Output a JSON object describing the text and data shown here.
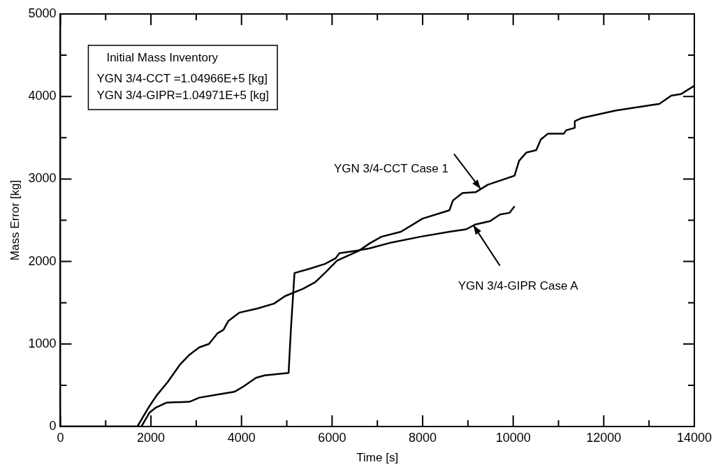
{
  "chart_data": {
    "type": "line",
    "xlabel": "Time [s]",
    "ylabel": "Mass Error [kg]",
    "xlim": [
      0,
      14000
    ],
    "ylim": [
      0,
      5000
    ],
    "xticks": [
      0,
      {
        "value": 1000,
        "label": null
      },
      2000,
      {
        "value": 3000,
        "label": null
      },
      4000,
      {
        "value": 5000,
        "label": null
      },
      6000,
      {
        "value": 7000,
        "label": null
      },
      8000,
      {
        "value": 9000,
        "label": null
      },
      10000,
      {
        "value": 11000,
        "label": null
      },
      12000,
      {
        "value": 13000,
        "label": null
      },
      14000
    ],
    "yticks": [
      0,
      {
        "value": 500,
        "label": null
      },
      1000,
      {
        "value": 1500,
        "label": null
      },
      2000,
      {
        "value": 2500,
        "label": null
      },
      3000,
      {
        "value": 3500,
        "label": null
      },
      4000,
      {
        "value": 4500,
        "label": null
      },
      5000
    ],
    "marker": "none",
    "line_style": "solid",
    "series": [
      {
        "color": "#000000",
        "x": [
          0,
          1700,
          1970,
          2130,
          2370,
          2590,
          2640,
          2850,
          3070,
          3280,
          3470,
          3600,
          3710,
          3950,
          4350,
          4720,
          4960,
          5360,
          5630,
          5840,
          6110,
          6590,
          6830,
          7090,
          7520,
          8000,
          8590,
          8670,
          8880,
          9170,
          9440,
          10030,
          10130,
          10290,
          10510,
          10610,
          10770,
          11120,
          11170,
          11360,
          11360,
          11520,
          12270,
          13230,
          13490,
          13710,
          14000
        ],
        "values": [
          0,
          0,
          250,
          380,
          540,
          710,
          750,
          870,
          960,
          1000,
          1130,
          1170,
          1280,
          1380,
          1430,
          1490,
          1580,
          1670,
          1750,
          1860,
          2010,
          2130,
          2220,
          2300,
          2360,
          2520,
          2620,
          2740,
          2830,
          2840,
          2930,
          3040,
          3220,
          3320,
          3350,
          3480,
          3550,
          3550,
          3590,
          3620,
          3700,
          3740,
          3830,
          3910,
          4010,
          4030,
          4130
        ]
      },
      {
        "color": "#000000",
        "x": [
          0,
          1790,
          1970,
          2110,
          2350,
          2850,
          3070,
          3490,
          3840,
          4030,
          4320,
          4510,
          5040,
          5090,
          5170,
          5490,
          5840,
          6080,
          6160,
          6530,
          6830,
          7310,
          7950,
          8590,
          8960,
          9170,
          9490,
          9710,
          9920,
          10030
        ],
        "values": [
          0,
          0,
          170,
          230,
          290,
          300,
          350,
          390,
          420,
          480,
          590,
          620,
          650,
          1170,
          1860,
          1910,
          1970,
          2040,
          2100,
          2130,
          2160,
          2230,
          2300,
          2360,
          2390,
          2450,
          2490,
          2570,
          2590,
          2670
        ]
      }
    ],
    "annotations": [
      "Initial Mass Inventory",
      "YGN 3/4-CCT =1.04966E+5 [kg]",
      "YGN 3/4-GIPR=1.04971E+5 [kg]",
      {
        "text": "YGN 3/4-CCT Case 1",
        "x": 9280,
        "y": 2880
      },
      {
        "text": "YGN 3/4-GIPR Case A",
        "x": 9120,
        "y": 2440
      }
    ]
  }
}
